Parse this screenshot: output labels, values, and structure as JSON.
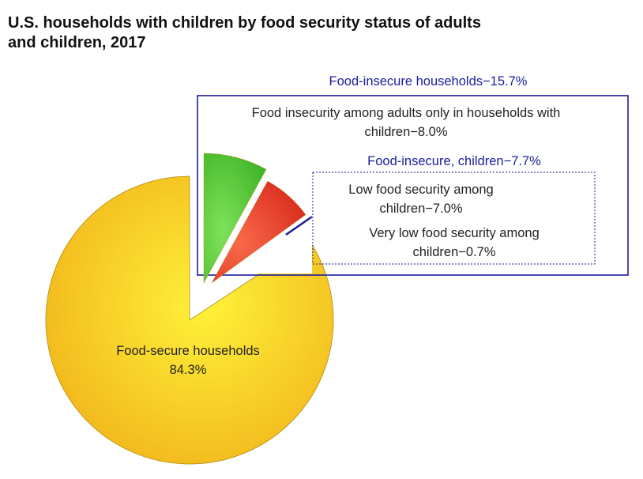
{
  "title_lines": [
    "U.S. households with children by food security status of adults",
    "and children, 2017"
  ],
  "chart_data": {
    "type": "pie",
    "title": "U.S. households with children by food security status of adults and children, 2017",
    "slices": [
      {
        "label": "Food-secure households",
        "value": 84.3,
        "color": "#f5c518"
      },
      {
        "label": "Food insecurity among adults only in households with children",
        "value": 8.0,
        "color": "#4cc22d"
      },
      {
        "label": "Low food security among children",
        "value": 7.0,
        "color": "#e53622"
      },
      {
        "label": "Very low food security among children",
        "value": 0.7,
        "color": "#1c1c9c"
      }
    ],
    "groups": [
      {
        "label": "Food-insecure households",
        "value": 15.7,
        "members": [
          1,
          2,
          3
        ],
        "color": "#1c1c9c"
      },
      {
        "label": "Food-insecure, children",
        "value": 7.7,
        "members": [
          2,
          3
        ],
        "color": "#1c1c9c"
      }
    ]
  },
  "labels": {
    "secure_line1": "Food-secure households",
    "secure_line2": "84.3%",
    "insecure_households": "Food-insecure households−15.7%",
    "adults_only_line1": "Food insecurity among adults only in households with",
    "adults_only_line2": "children−8.0%",
    "insecure_children": "Food-insecure, children−7.7%",
    "low_line1": "Low food security among",
    "low_line2": "children−7.0%",
    "very_low_line1": "Very low food security among",
    "very_low_line2": "children−0.7%"
  },
  "colors": {
    "accent": "#1c1c9c",
    "secure": "#f5c518",
    "adults_only": "#4cc22d",
    "low": "#e53622",
    "very_low": "#1c1c9c"
  }
}
